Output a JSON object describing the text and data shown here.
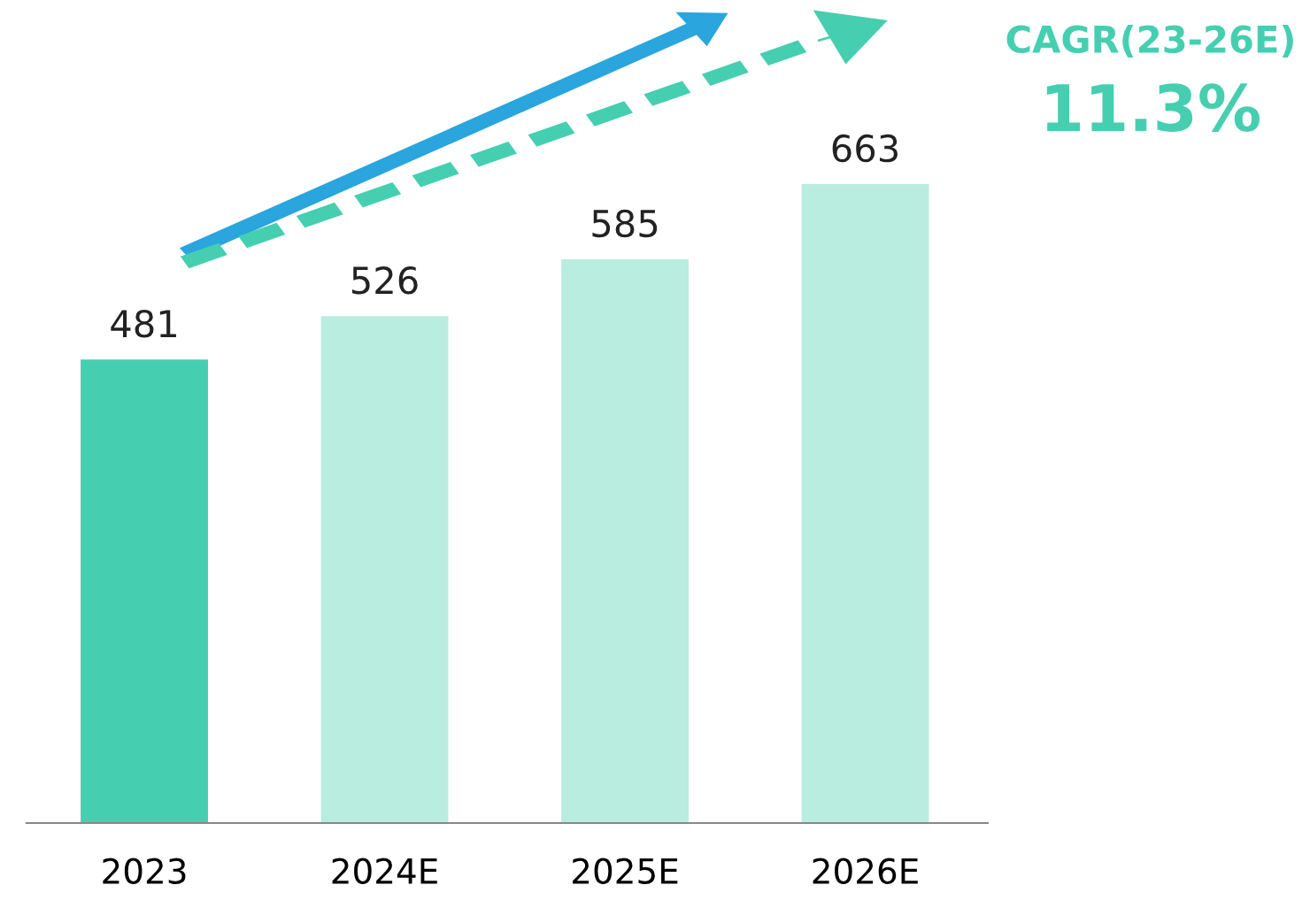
{
  "chart_data": {
    "type": "bar",
    "categories": [
      "2023",
      "2024E",
      "2025E",
      "2026E"
    ],
    "values": [
      481,
      526,
      585,
      663
    ],
    "colors": [
      "#45cfb0",
      "#b9ede0",
      "#b9ede0",
      "#b9ede0"
    ],
    "data_labels": true,
    "tick_labels": "x",
    "grid": false,
    "annotations": [
      "CAGR(23-26E)",
      "11.3%"
    ]
  }
}
